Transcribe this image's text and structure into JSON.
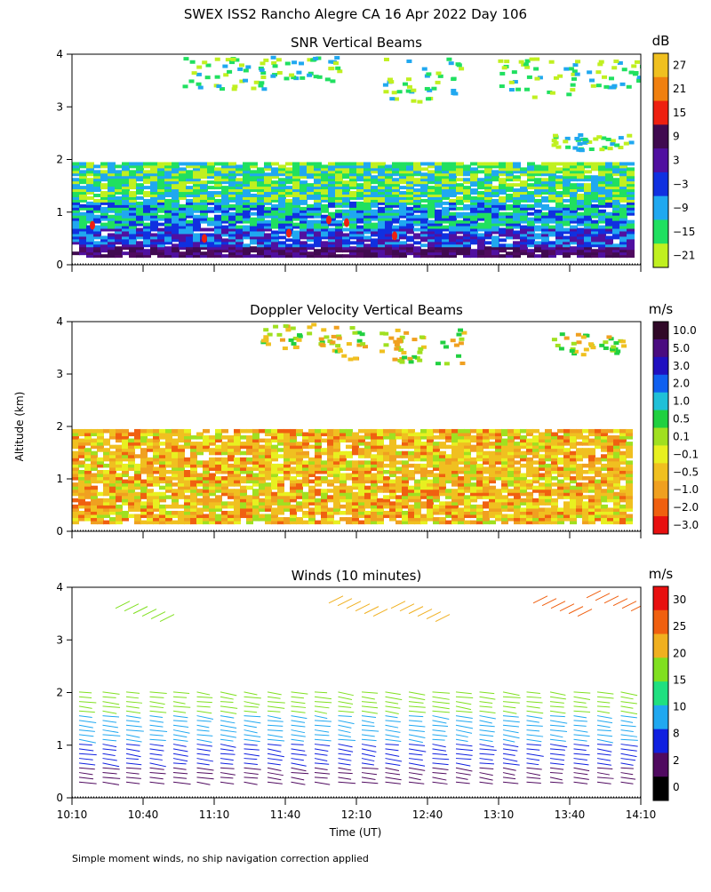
{
  "figure": {
    "title": "SWEX ISS2 Rancho Alegre CA  16 Apr 2022 Day 106",
    "ylabel": "Altitude (km)",
    "xlabel": "Time (UT)",
    "footnote": "Simple moment winds, no ship navigation correction applied",
    "x_ticks": [
      "10:10",
      "10:40",
      "11:10",
      "11:40",
      "12:10",
      "12:40",
      "13:10",
      "13:40",
      "14:10"
    ],
    "y_ticks": [
      "0",
      "1",
      "2",
      "3",
      "4"
    ]
  },
  "chart_data": [
    {
      "type": "heatmap",
      "title": "SNR Vertical Beams",
      "units": "dB",
      "x_range": [
        "10:10",
        "14:10"
      ],
      "ylim": [
        0,
        4
      ],
      "ylabel": "Altitude (km)",
      "colorbar_labels": [
        "27",
        "21",
        "15",
        "9",
        "3",
        "−3",
        "−9",
        "−15",
        "−21"
      ],
      "colorbar_colors": [
        "#f0c020",
        "#f08010",
        "#ee2010",
        "#400a50",
        "#5010a0",
        "#1030e0",
        "#20a8f0",
        "#20e060",
        "#c0f020"
      ]
    },
    {
      "type": "heatmap",
      "title": "Doppler Velocity Vertical Beams",
      "units": "m/s",
      "x_range": [
        "10:10",
        "14:10"
      ],
      "ylim": [
        0,
        4
      ],
      "ylabel": "Altitude (km)",
      "colorbar_labels": [
        "10.0",
        "5.0",
        "3.0",
        "2.0",
        "1.0",
        "0.5",
        "0.1",
        "−0.1",
        "−0.5",
        "−1.0",
        "−2.0",
        "−3.0"
      ],
      "colorbar_colors": [
        "#300828",
        "#4a0c80",
        "#2010c0",
        "#1060f0",
        "#20c0d8",
        "#20d040",
        "#a0e020",
        "#e8f020",
        "#f0c020",
        "#f0a020",
        "#f06010",
        "#e81010"
      ]
    },
    {
      "type": "scatter",
      "title": "Winds (10 minutes)",
      "units": "m/s",
      "x_range": [
        "10:10",
        "14:10"
      ],
      "ylim": [
        0,
        4
      ],
      "xlabel": "Time (UT)",
      "colorbar_labels": [
        "30",
        "25",
        "20",
        "15",
        "10",
        "8",
        "2",
        "0"
      ],
      "colorbar_colors": [
        "#e81010",
        "#f06010",
        "#f0b020",
        "#80e020",
        "#20e080",
        "#20a8f0",
        "#1020e0",
        "#500a60",
        "#000000"
      ]
    }
  ]
}
